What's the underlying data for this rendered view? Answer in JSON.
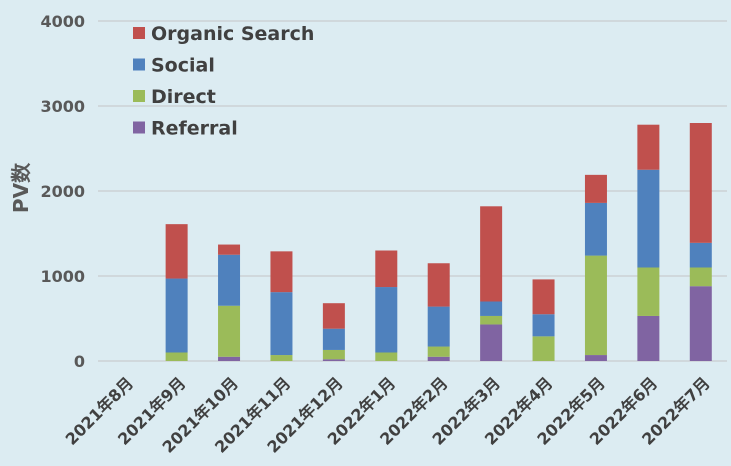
{
  "chart_data": {
    "type": "bar",
    "stacked": true,
    "ylabel": "PV数",
    "xlabel": "",
    "ylim": [
      0,
      4000
    ],
    "yticks": [
      "0",
      "1000",
      "2000",
      "3000",
      "4000"
    ],
    "grid": true,
    "legend_position": "top-left",
    "categories": [
      "2021年8月",
      "2021年9月",
      "2021年10月",
      "2021年11月",
      "2021年12月",
      "2022年1月",
      "2022年2月",
      "2022年3月",
      "2022年4月",
      "2022年5月",
      "2022年6月",
      "2022年7月"
    ],
    "series": [
      {
        "name": "Referral",
        "color": "#8064a2",
        "values": [
          0,
          0,
          50,
          0,
          20,
          0,
          50,
          430,
          0,
          70,
          530,
          880
        ]
      },
      {
        "name": "Direct",
        "color": "#9bbb59",
        "values": [
          0,
          100,
          600,
          70,
          110,
          100,
          120,
          100,
          290,
          1170,
          570,
          220
        ]
      },
      {
        "name": "Social",
        "color": "#4f81bd",
        "values": [
          0,
          870,
          600,
          740,
          250,
          770,
          470,
          170,
          260,
          620,
          1150,
          290
        ]
      },
      {
        "name": "Organic Search",
        "color": "#c0504d",
        "values": [
          0,
          640,
          120,
          480,
          300,
          430,
          510,
          1120,
          410,
          330,
          530,
          1410
        ]
      }
    ],
    "legend_order": [
      "Organic Search",
      "Social",
      "Direct",
      "Referral"
    ]
  }
}
